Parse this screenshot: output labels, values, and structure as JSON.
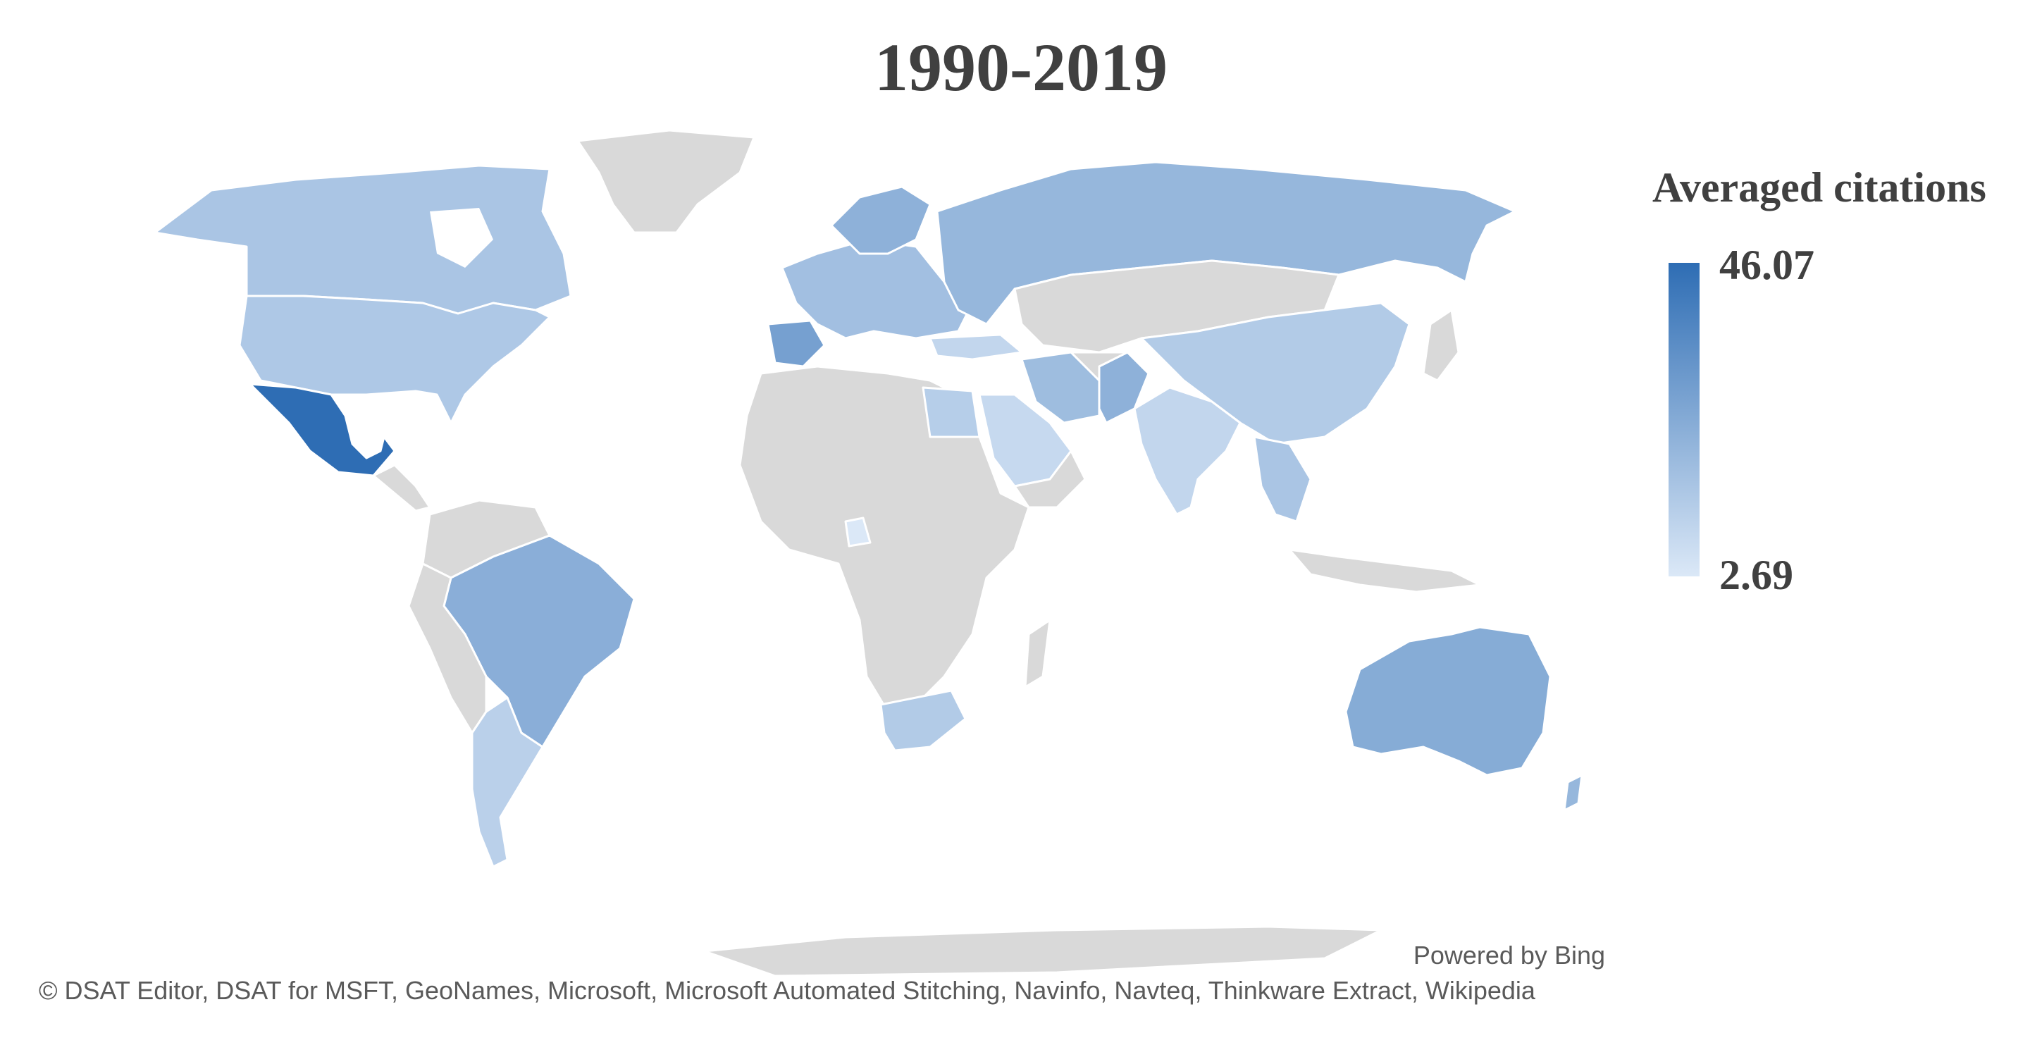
{
  "title": "1990-2019",
  "legend": {
    "title": "Averaged citations",
    "max_label": "46.07",
    "min_label": "2.69",
    "max_color": "#2e6db4",
    "min_color": "#dbe8f7"
  },
  "no_data_color": "#d9d9d9",
  "countries": [
    {
      "name": "Mexico",
      "value": 46.07
    },
    {
      "name": "Spain",
      "value": 28
    },
    {
      "name": "Australia",
      "value": 24
    },
    {
      "name": "Brazil",
      "value": 23
    },
    {
      "name": "Russia",
      "value": 20
    },
    {
      "name": "Pakistan",
      "value": 22
    },
    {
      "name": "Iran",
      "value": 18
    },
    {
      "name": "Canada",
      "value": 15
    },
    {
      "name": "United States",
      "value": 14
    },
    {
      "name": "China",
      "value": 13
    },
    {
      "name": "Argentina",
      "value": 11
    },
    {
      "name": "India",
      "value": 9
    },
    {
      "name": "Saudi Arabia",
      "value": 8
    },
    {
      "name": "South Africa",
      "value": 13
    },
    {
      "name": "Egypt",
      "value": 12
    },
    {
      "name": "Turkey",
      "value": 9
    },
    {
      "name": "Cameroon",
      "value": 2.69
    }
  ],
  "footer": {
    "powered_by": "Powered by Bing",
    "attribution": "© DSAT Editor, DSAT for MSFT, GeoNames, Microsoft, Microsoft Automated Stitching, Navinfo, Navteq, Thinkware Extract, Wikipedia"
  }
}
